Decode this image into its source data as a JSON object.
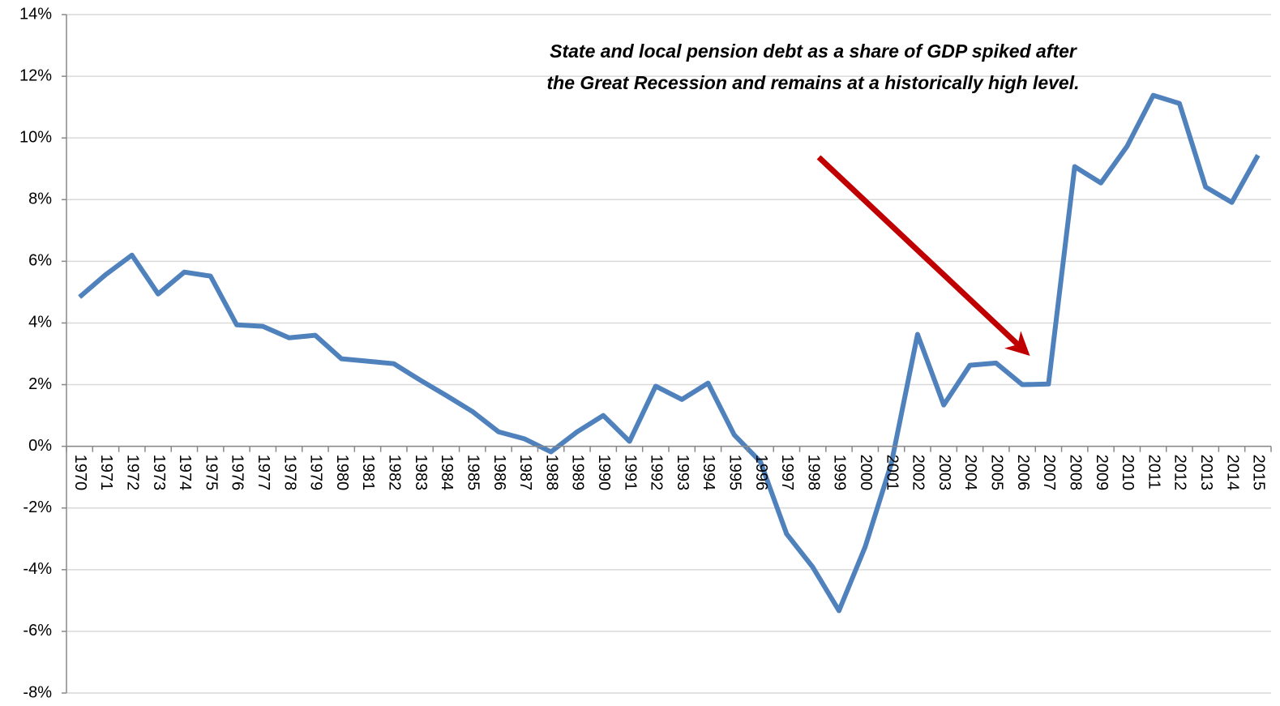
{
  "chart_data": {
    "type": "line",
    "annotation": "State and local pension debt as a share of GDP spiked after the Great Recession and remains at a historically high level.",
    "categories": [
      "1970",
      "1971",
      "1972",
      "1973",
      "1974",
      "1975",
      "1976",
      "1977",
      "1978",
      "1979",
      "1980",
      "1981",
      "1982",
      "1983",
      "1984",
      "1985",
      "1986",
      "1987",
      "1988",
      "1989",
      "1990",
      "1991",
      "1992",
      "1993",
      "1994",
      "1995",
      "1996",
      "1997",
      "1998",
      "1999",
      "2000",
      "2001",
      "2002",
      "2003",
      "2004",
      "2005",
      "2006",
      "2007",
      "2008",
      "2009",
      "2010",
      "2011",
      "2012",
      "2013",
      "2014",
      "2015"
    ],
    "series": [
      {
        "color": "#4f81bd",
        "values": [
          4.84,
          5.57,
          6.2,
          4.94,
          5.65,
          5.52,
          3.94,
          3.89,
          3.52,
          3.6,
          2.84,
          2.76,
          2.68,
          2.15,
          1.65,
          1.13,
          0.47,
          0.24,
          -0.18,
          0.47,
          1.0,
          0.16,
          1.95,
          1.52,
          2.05,
          0.37,
          -0.5,
          -2.84,
          -3.92,
          -5.33,
          -3.26,
          -0.55,
          3.63,
          1.34,
          2.63,
          2.7,
          2.0,
          2.02,
          9.07,
          8.54,
          9.73,
          11.38,
          11.12,
          8.41,
          7.91,
          9.44
        ]
      }
    ],
    "ylim": [
      -8,
      14
    ],
    "yticks": [
      {
        "value": -8,
        "label": "-8%"
      },
      {
        "value": -6,
        "label": "-6%"
      },
      {
        "value": -4,
        "label": "-4%"
      },
      {
        "value": -2,
        "label": "-2%"
      },
      {
        "value": 0,
        "label": "0%"
      },
      {
        "value": 2,
        "label": "2%"
      },
      {
        "value": 4,
        "label": "4%"
      },
      {
        "value": 6,
        "label": "6%"
      },
      {
        "value": 8,
        "label": "8%"
      },
      {
        "value": 10,
        "label": "10%"
      },
      {
        "value": 12,
        "label": "12%"
      },
      {
        "value": 14,
        "label": "14%"
      }
    ],
    "grid": true
  }
}
